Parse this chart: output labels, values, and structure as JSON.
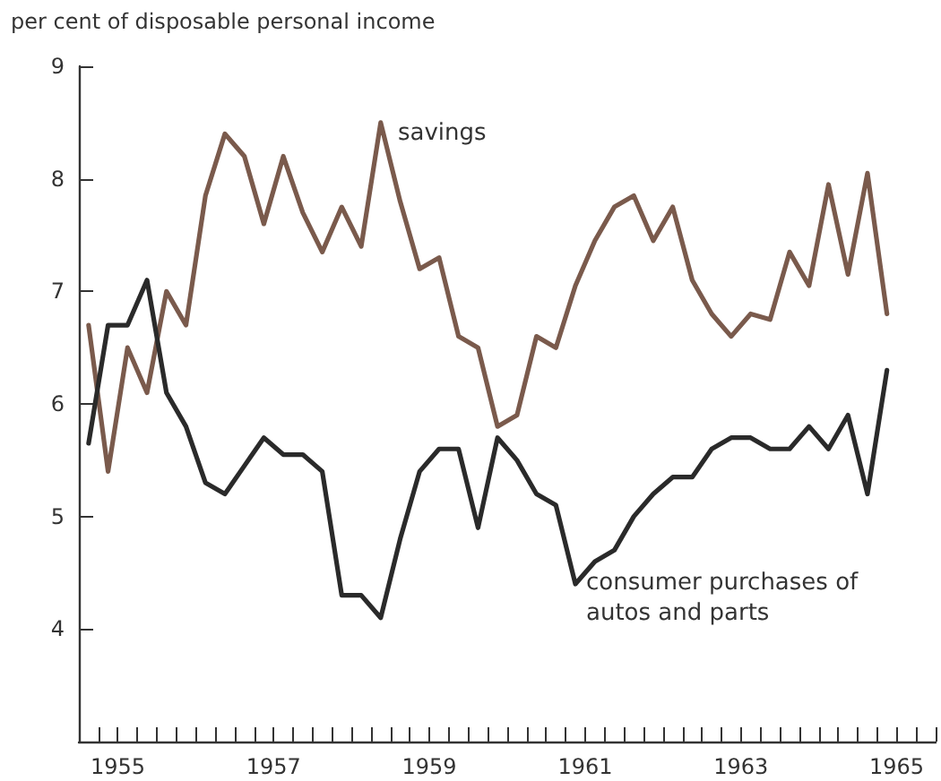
{
  "chart_data": {
    "type": "line",
    "ylabel": "per cent of disposable personal income",
    "x": [
      1955.125,
      1955.375,
      1955.625,
      1955.875,
      1956.125,
      1956.375,
      1956.625,
      1956.875,
      1957.125,
      1957.375,
      1957.625,
      1957.875,
      1958.125,
      1958.375,
      1958.625,
      1958.875,
      1959.125,
      1959.375,
      1959.625,
      1959.875,
      1960.125,
      1960.375,
      1960.625,
      1960.875,
      1961.125,
      1961.375,
      1961.625,
      1961.875,
      1962.125,
      1962.375,
      1962.625,
      1962.875,
      1963.125,
      1963.375,
      1963.625,
      1963.875,
      1964.125,
      1964.375,
      1964.625,
      1964.875,
      1965.125,
      1965.375
    ],
    "series": [
      {
        "name": "savings",
        "color": "#7a5a4c",
        "values": [
          6.7,
          5.4,
          6.5,
          6.1,
          7.0,
          6.7,
          7.85,
          8.4,
          8.2,
          7.6,
          8.2,
          7.7,
          7.35,
          7.75,
          7.4,
          8.5,
          7.8,
          7.2,
          7.3,
          6.6,
          6.5,
          5.8,
          5.9,
          6.6,
          6.5,
          7.05,
          7.45,
          7.75,
          7.85,
          7.45,
          7.75,
          7.1,
          6.8,
          6.6,
          6.8,
          6.75,
          7.35,
          7.05,
          7.95,
          7.15,
          8.05,
          6.8
        ]
      },
      {
        "name": "consumer purchases of\nautos and parts",
        "color": "#2a2a2a",
        "values": [
          5.65,
          6.7,
          6.7,
          7.1,
          6.1,
          5.8,
          5.3,
          5.2,
          5.45,
          5.7,
          5.55,
          5.55,
          5.4,
          4.3,
          4.3,
          4.1,
          4.8,
          5.4,
          5.6,
          5.6,
          4.9,
          5.7,
          5.5,
          5.2,
          5.1,
          4.4,
          4.6,
          4.7,
          5.0,
          5.2,
          5.35,
          5.35,
          5.6,
          5.7,
          5.7,
          5.6,
          5.6,
          5.8,
          5.6,
          5.9,
          5.2,
          6.3
        ]
      }
    ],
    "xlim": [
      1955,
      1966
    ],
    "xticks": [
      {
        "value": 1955,
        "label": null
      },
      {
        "value": 1955.25,
        "label": null
      },
      {
        "value": 1955.5,
        "label": "1955"
      },
      {
        "value": 1955.75,
        "label": null
      },
      {
        "value": 1956,
        "label": null
      },
      {
        "value": 1956.25,
        "label": null
      },
      {
        "value": 1956.5,
        "label": null
      },
      {
        "value": 1956.75,
        "label": null
      },
      {
        "value": 1957,
        "label": null
      },
      {
        "value": 1957.25,
        "label": null
      },
      {
        "value": 1957.5,
        "label": "1957"
      },
      {
        "value": 1957.75,
        "label": null
      },
      {
        "value": 1958,
        "label": null
      },
      {
        "value": 1958.25,
        "label": null
      },
      {
        "value": 1958.5,
        "label": null
      },
      {
        "value": 1958.75,
        "label": null
      },
      {
        "value": 1959,
        "label": null
      },
      {
        "value": 1959.25,
        "label": null
      },
      {
        "value": 1959.5,
        "label": "1959"
      },
      {
        "value": 1959.75,
        "label": null
      },
      {
        "value": 1960,
        "label": null
      },
      {
        "value": 1960.25,
        "label": null
      },
      {
        "value": 1960.5,
        "label": null
      },
      {
        "value": 1960.75,
        "label": null
      },
      {
        "value": 1961,
        "label": null
      },
      {
        "value": 1961.25,
        "label": null
      },
      {
        "value": 1961.5,
        "label": "1961"
      },
      {
        "value": 1961.75,
        "label": null
      },
      {
        "value": 1962,
        "label": null
      },
      {
        "value": 1962.25,
        "label": null
      },
      {
        "value": 1962.5,
        "label": null
      },
      {
        "value": 1962.75,
        "label": null
      },
      {
        "value": 1963,
        "label": null
      },
      {
        "value": 1963.25,
        "label": null
      },
      {
        "value": 1963.5,
        "label": "1963"
      },
      {
        "value": 1963.75,
        "label": null
      },
      {
        "value": 1964,
        "label": null
      },
      {
        "value": 1964.25,
        "label": null
      },
      {
        "value": 1964.5,
        "label": null
      },
      {
        "value": 1964.75,
        "label": null
      },
      {
        "value": 1965,
        "label": null
      },
      {
        "value": 1965.25,
        "label": null
      },
      {
        "value": 1965.5,
        "label": "1965"
      },
      {
        "value": 1965.75,
        "label": null
      },
      {
        "value": 1966,
        "label": null
      }
    ],
    "ylim": [
      3,
      9
    ],
    "yticks": [
      4,
      5,
      6,
      7,
      8,
      9
    ],
    "grid": false,
    "legend": false,
    "marker": "none",
    "line_style": "solid"
  }
}
